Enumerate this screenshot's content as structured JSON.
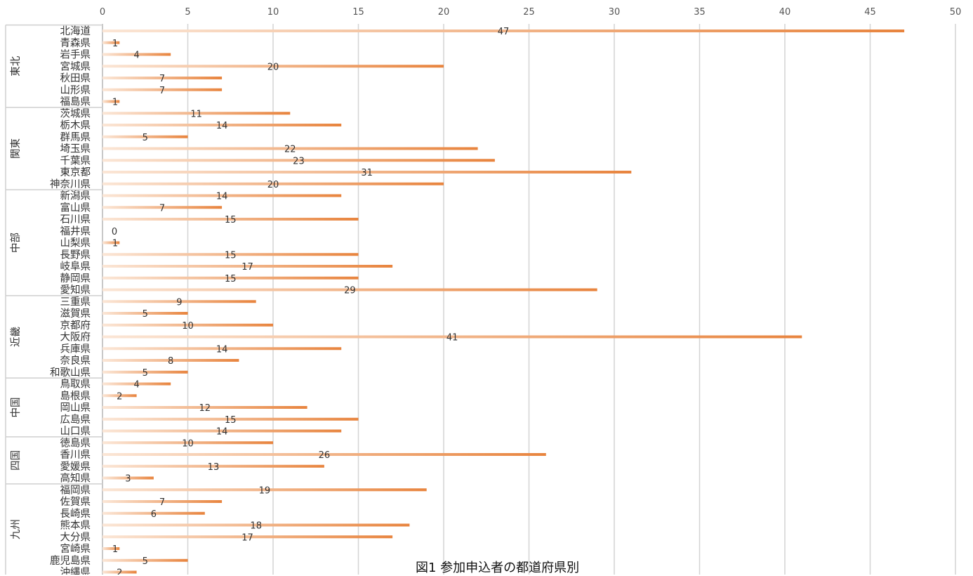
{
  "caption": "図1 参加申込者の都道府県別",
  "chart_data": {
    "type": "bar",
    "orientation": "horizontal",
    "title": "",
    "xlabel": "",
    "ylabel": "",
    "xlim": [
      0,
      50
    ],
    "xticks": [
      0,
      5,
      10,
      15,
      20,
      25,
      30,
      35,
      40,
      45,
      50
    ],
    "grid": true,
    "bar_color": "#e8843e",
    "bar_fade_color": "#fbe6d6",
    "groups": [
      {
        "name": "東北",
        "categories": [
          "北海道",
          "青森県",
          "岩手県",
          "宮城県",
          "秋田県",
          "山形県",
          "福島県"
        ],
        "values": [
          47,
          1,
          4,
          20,
          7,
          7,
          1
        ]
      },
      {
        "name": "関東",
        "categories": [
          "茨城県",
          "栃木県",
          "群馬県",
          "埼玉県",
          "千葉県",
          "東京都",
          "神奈川県"
        ],
        "values": [
          11,
          14,
          5,
          22,
          23,
          31,
          20
        ]
      },
      {
        "name": "中部",
        "categories": [
          "新潟県",
          "富山県",
          "石川県",
          "福井県",
          "山梨県",
          "長野県",
          "岐阜県",
          "静岡県",
          "愛知県"
        ],
        "values": [
          14,
          7,
          15,
          0,
          1,
          15,
          17,
          15,
          29
        ]
      },
      {
        "name": "近畿",
        "categories": [
          "三重県",
          "滋賀県",
          "京都府",
          "大阪府",
          "兵庫県",
          "奈良県",
          "和歌山県"
        ],
        "values": [
          9,
          5,
          10,
          41,
          14,
          8,
          5
        ]
      },
      {
        "name": "中国",
        "categories": [
          "鳥取県",
          "島根県",
          "岡山県",
          "広島県",
          "山口県"
        ],
        "values": [
          4,
          2,
          12,
          15,
          14
        ]
      },
      {
        "name": "四国",
        "categories": [
          "徳島県",
          "香川県",
          "愛媛県",
          "高知県"
        ],
        "values": [
          10,
          26,
          13,
          3
        ]
      },
      {
        "name": "九州",
        "categories": [
          "福岡県",
          "佐賀県",
          "長崎県",
          "熊本県",
          "大分県",
          "宮崎県",
          "鹿児島県",
          "沖縄県"
        ],
        "values": [
          19,
          7,
          6,
          18,
          17,
          1,
          5,
          2
        ]
      }
    ]
  }
}
